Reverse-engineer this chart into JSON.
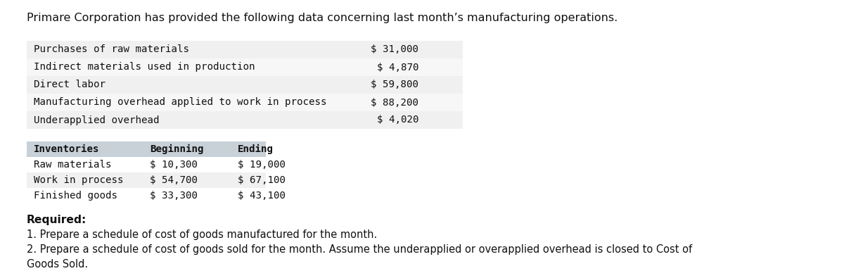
{
  "title": "Primare Corporation has provided the following data concerning last month’s manufacturing operations.",
  "bg_color": "#ffffff",
  "operations_labels": [
    "Purchases of raw materials",
    "Indirect materials used in production",
    "Direct labor",
    "Manufacturing overhead applied to work in process",
    "Underapplied overhead"
  ],
  "operations_values": [
    "$ 31,000",
    "$ 4,870",
    "$ 59,800",
    "$ 88,200",
    "$ 4,020"
  ],
  "ops_row_colors": [
    "#f0f0f0",
    "#f7f7f7",
    "#f0f0f0",
    "#f7f7f7",
    "#f0f0f0"
  ],
  "table_header": [
    "Inventories",
    "Beginning",
    "Ending"
  ],
  "table_rows": [
    [
      "Raw materials",
      "$ 10,300",
      "$ 19,000"
    ],
    [
      "Work in process",
      "$ 54,700",
      "$ 67,100"
    ],
    [
      "Finished goods",
      "$ 33,300",
      "$ 43,100"
    ]
  ],
  "table_header_bg": "#c8d0d8",
  "table_row_colors": [
    "#ffffff",
    "#f0f0f0",
    "#ffffff"
  ],
  "required_label": "Required:",
  "point1": "1. Prepare a schedule of cost of goods manufactured for the month.",
  "point2_line1": "2. Prepare a schedule of cost of goods sold for the month. Assume the underapplied or overapplied overhead is closed to Cost of",
  "point2_line2": "Goods Sold.",
  "title_fontsize": 11.5,
  "body_fontsize": 10.2,
  "required_fontsize": 11.2
}
